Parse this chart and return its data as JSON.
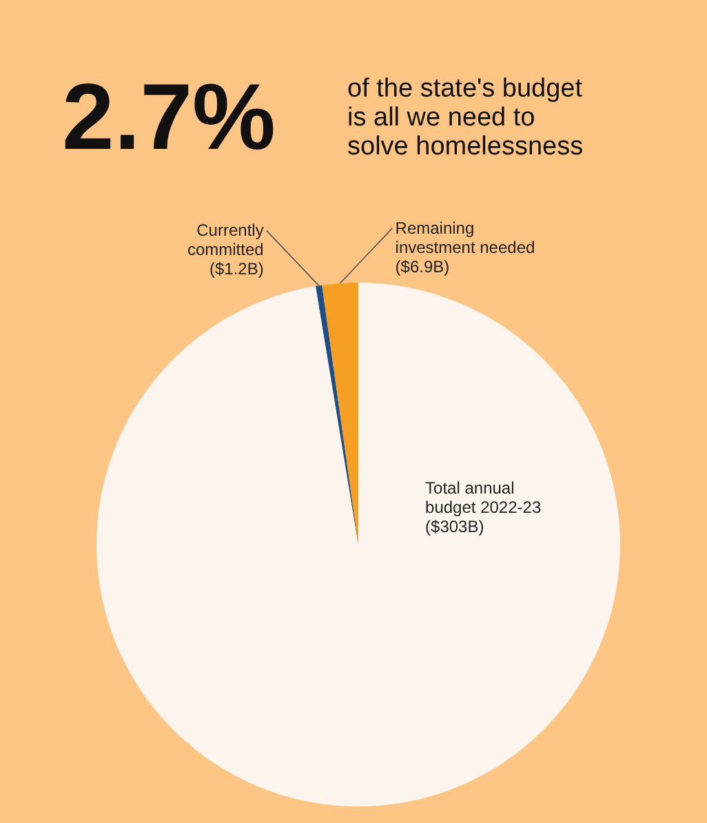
{
  "chart_data": {
    "type": "pie",
    "title": "2.7%",
    "subtitle": "of the state's budget is all we need to solve homelessness",
    "categories": [
      "Total annual budget 2022-23",
      "Currently committed",
      "Remaining investment needed"
    ],
    "values": [
      303,
      1.2,
      6.9
    ],
    "value_labels": [
      "($303B)",
      "($1.2B)",
      "($6.9B)"
    ],
    "colors": [
      "#fbf5ee",
      "#1a4f8b",
      "#f5a025"
    ]
  }
}
